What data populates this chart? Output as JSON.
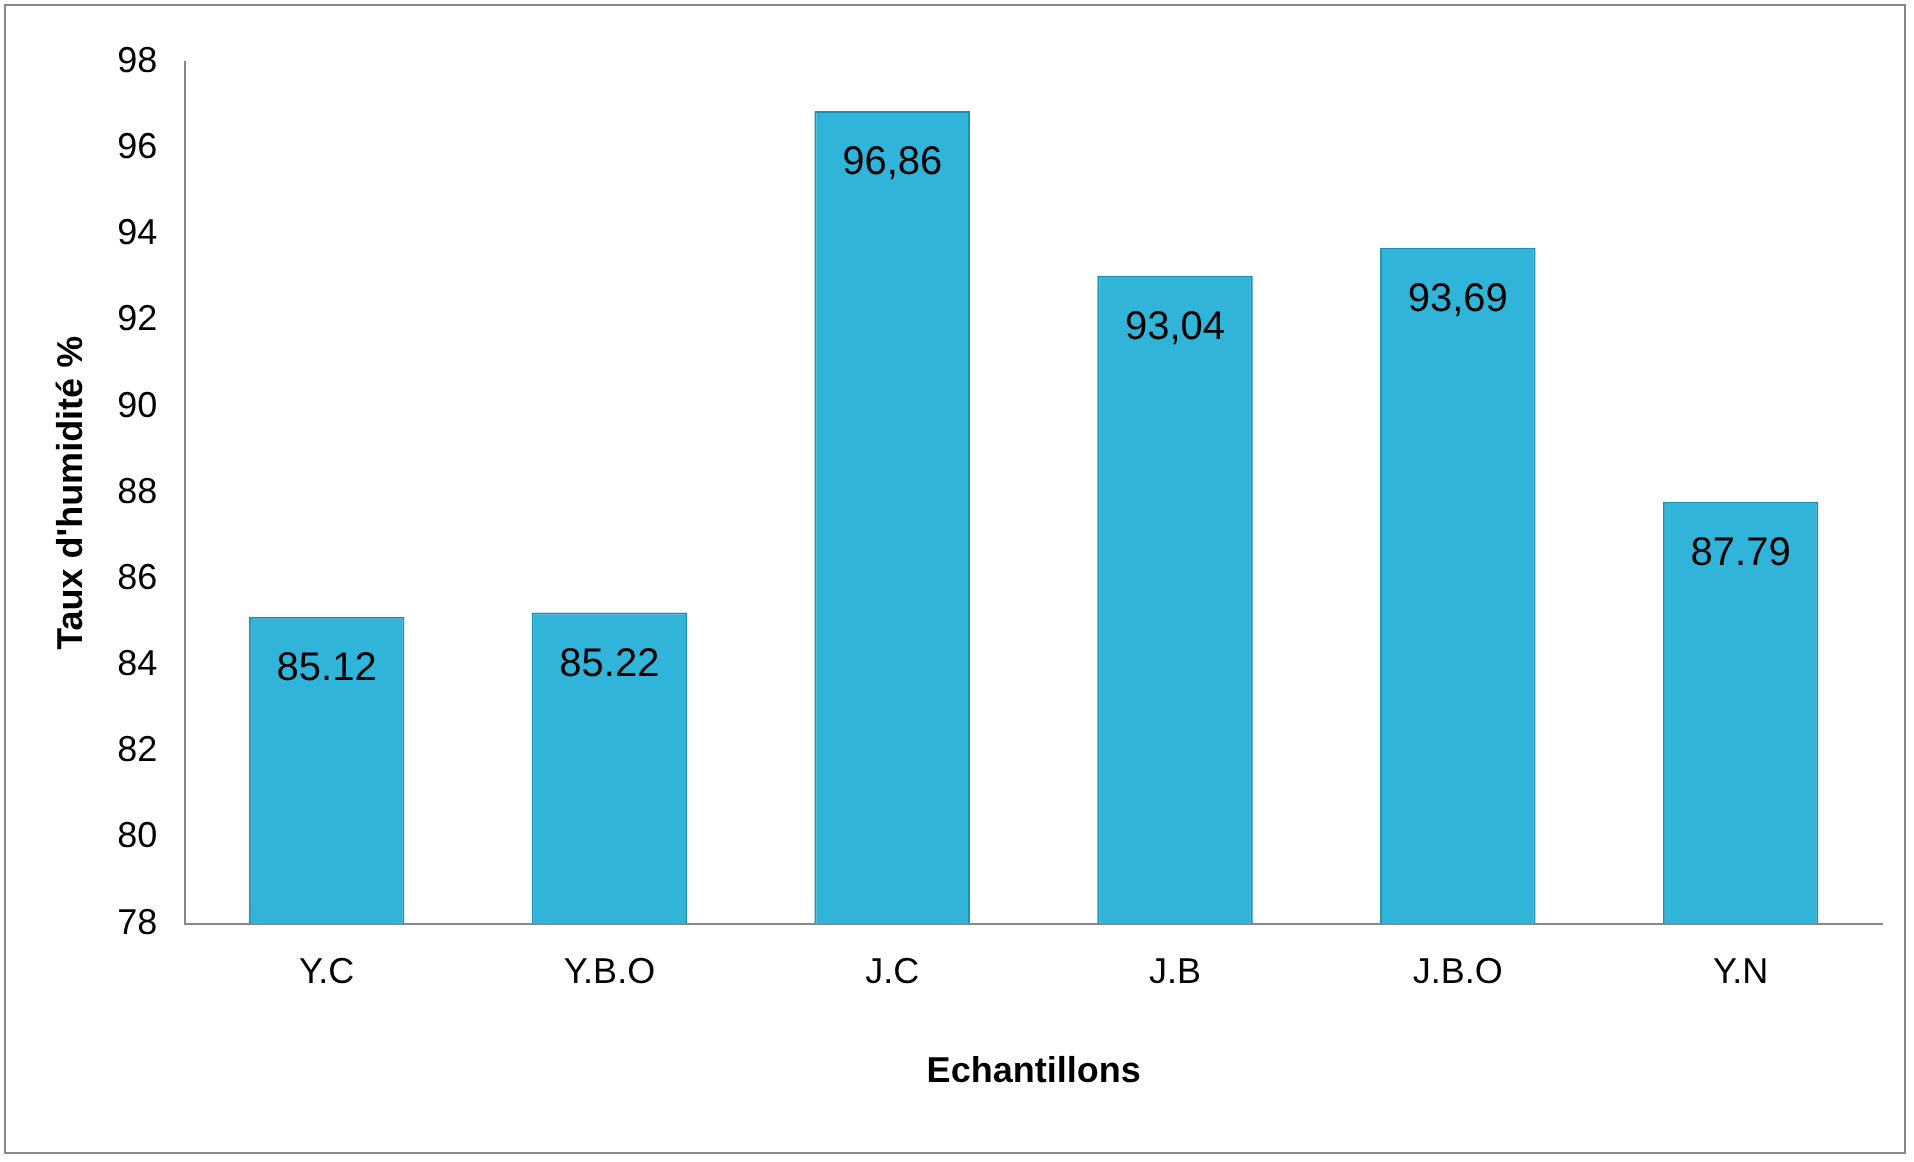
{
  "chart_data": {
    "type": "bar",
    "xlabel": "Echantillons",
    "ylabel": "Taux d'humidité %",
    "categories": [
      "Y.C",
      "Y.B.O",
      "J.C",
      "J.B",
      "J.B.O",
      "Y.N"
    ],
    "values": [
      85.12,
      85.22,
      96.86,
      93.04,
      93.69,
      87.79
    ],
    "value_labels": [
      "85.12",
      "85.22",
      "96,86",
      "93,04",
      "93,69",
      "87.79"
    ],
    "color": "#31b4d9",
    "ylim": [
      78,
      98
    ],
    "yticks": [
      78,
      80,
      82,
      84,
      86,
      88,
      90,
      92,
      94,
      96,
      98
    ],
    "grid": false,
    "legend": false
  }
}
